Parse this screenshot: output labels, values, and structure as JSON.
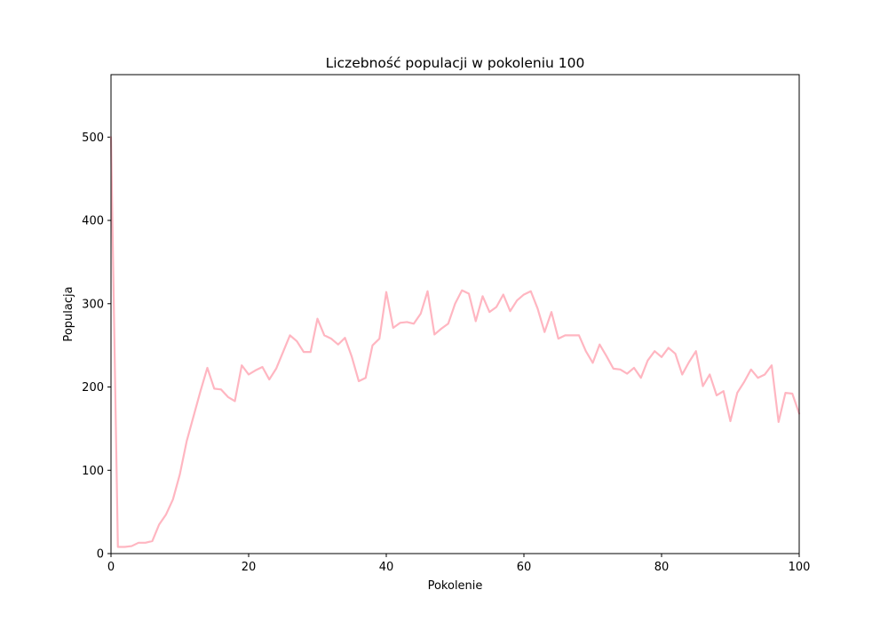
{
  "chart_data": {
    "type": "line",
    "title": "Liczebność populacji w pokoleniu 100",
    "xlabel": "Pokolenie",
    "ylabel": "Populacja",
    "xlim": [
      0,
      100
    ],
    "ylim": [
      0,
      575
    ],
    "xticks": [
      0,
      20,
      40,
      60,
      80,
      100
    ],
    "yticks": [
      0,
      100,
      200,
      300,
      400,
      500
    ],
    "grid": false,
    "line_color": "#ffb6c1",
    "series": [
      {
        "x": [
          0,
          1,
          2,
          3,
          4,
          5,
          6,
          7,
          8,
          9,
          10,
          11,
          12,
          13,
          14,
          15,
          16,
          17,
          18,
          19,
          20,
          21,
          22,
          23,
          24,
          25,
          26,
          27,
          28,
          29,
          30,
          31,
          32,
          33,
          34,
          35,
          36,
          37,
          38,
          39,
          40,
          41,
          42,
          43,
          44,
          45,
          46,
          47,
          48,
          49,
          50,
          51,
          52,
          53,
          54,
          55,
          56,
          57,
          58,
          59,
          60,
          61,
          62,
          63,
          64,
          65,
          66,
          67,
          68,
          69,
          70,
          71,
          72,
          73,
          74,
          75,
          76,
          77,
          78,
          79,
          80,
          81,
          82,
          83,
          84,
          85,
          86,
          87,
          88,
          89,
          90,
          91,
          92,
          93,
          94,
          95,
          96,
          97,
          98,
          99,
          100
        ],
        "values": [
          500,
          8,
          8,
          9,
          13,
          13,
          15,
          35,
          47,
          65,
          95,
          135,
          165,
          195,
          223,
          198,
          197,
          188,
          183,
          226,
          215,
          220,
          224,
          209,
          222,
          242,
          262,
          255,
          242,
          242,
          282,
          262,
          258,
          251,
          259,
          236,
          207,
          211,
          250,
          258,
          314,
          271,
          277,
          278,
          276,
          288,
          315,
          263,
          270,
          276,
          300,
          316,
          312,
          279,
          309,
          290,
          296,
          311,
          291,
          304,
          311,
          315,
          294,
          266,
          290,
          258,
          262,
          262,
          262,
          243,
          229,
          251,
          237,
          222,
          221,
          216,
          223,
          211,
          232,
          243,
          236,
          247,
          240,
          215,
          230,
          243,
          201,
          215,
          190,
          195,
          159,
          193,
          206,
          221,
          211,
          215,
          226,
          158,
          193,
          192,
          168
        ]
      }
    ]
  }
}
